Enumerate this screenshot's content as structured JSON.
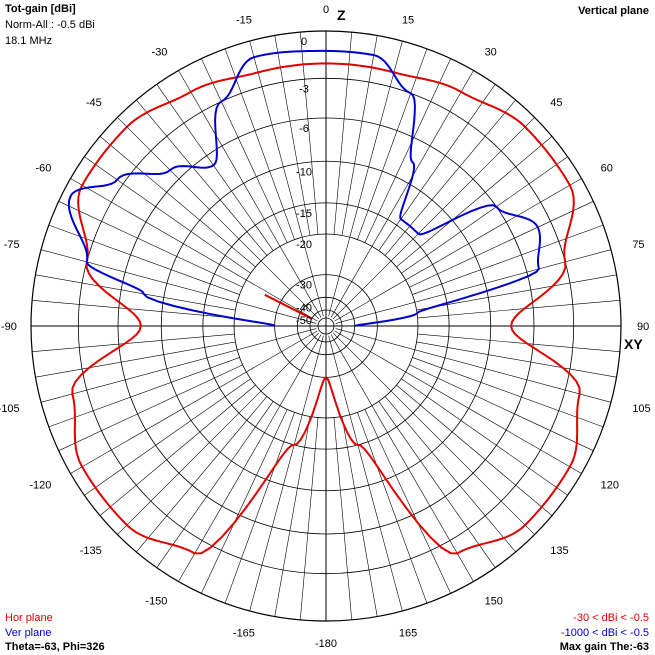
{
  "header": {
    "title": "Tot-gain [dBi]",
    "norm": "Norm-All : -0.5 dBi",
    "freq": "18.1 MHz",
    "plane": "Vertical plane"
  },
  "axis_labels": {
    "z": "Z",
    "xy": "XY"
  },
  "footer": {
    "hor_plane": "Hor plane",
    "ver_plane": "Ver plane",
    "cursor": "Theta=-63, Phi=326",
    "hor_range": "-30 < dBi < -0.5",
    "ver_range": "-1000 < dBi < -0.5",
    "max_gain": "Max gain The:-63"
  },
  "colors": {
    "hor": "#e00000",
    "ver": "#0000cc",
    "grid": "#000000"
  },
  "chart_data": {
    "type": "polar",
    "angle_ticks": [
      0,
      15,
      30,
      45,
      60,
      75,
      90,
      105,
      120,
      135,
      150,
      165,
      -180,
      -165,
      -150,
      -135,
      -120,
      -105,
      -90,
      -75,
      -60,
      -45,
      -30,
      -15
    ],
    "angle_tick_labels": [
      "0",
      "15",
      "30",
      "45",
      "60",
      "75",
      "90",
      "105",
      "120",
      "135",
      "150",
      "165",
      "-180",
      "-165",
      "-150",
      "-135",
      "-120",
      "-105",
      "-90",
      "-75",
      "-60",
      "-45",
      "-30",
      "-15"
    ],
    "radial_ticks": [
      0,
      -3,
      -6,
      -10,
      -15,
      -20,
      -30,
      -40,
      -50
    ],
    "radial_tick_labels": [
      "0",
      "-3",
      "-6",
      "-10",
      "-15",
      "-20",
      "-30",
      "-40",
      "-50"
    ],
    "series": [
      {
        "name": "Hor plane",
        "angles": [
          0,
          15,
          30,
          45,
          60,
          75,
          90,
          105,
          120,
          135,
          150,
          165,
          180,
          -165,
          -150,
          -135,
          -120,
          -105,
          -90,
          -75,
          -60,
          -45,
          -30,
          -15
        ],
        "values": [
          -2,
          -2,
          -1.5,
          -0.8,
          -0.8,
          -3,
          -8,
          -2,
          -0.8,
          -0.8,
          -2,
          -15,
          -30,
          -15,
          -2,
          -0.8,
          -0.8,
          -2,
          -8,
          -3,
          -0.8,
          -0.8,
          -1.5,
          -2
        ]
      },
      {
        "name": "Ver plane",
        "angles": [
          -90,
          -80,
          -75,
          -63,
          -55,
          -45,
          -35,
          -25,
          -15,
          0,
          10,
          20,
          28,
          35,
          45,
          55,
          65,
          75,
          82,
          90
        ],
        "values": [
          -30,
          -8,
          -3,
          -0.5,
          -2.5,
          -5,
          -7,
          -3,
          -1,
          -1.2,
          -1.2,
          -3,
          -8,
          -14,
          -14,
          -6,
          -4,
          -5,
          -20,
          -40
        ]
      },
      {
        "name": "cursor",
        "angles": [
          -63,
          -63
        ],
        "values": [
          -50,
          -25
        ]
      }
    ]
  }
}
